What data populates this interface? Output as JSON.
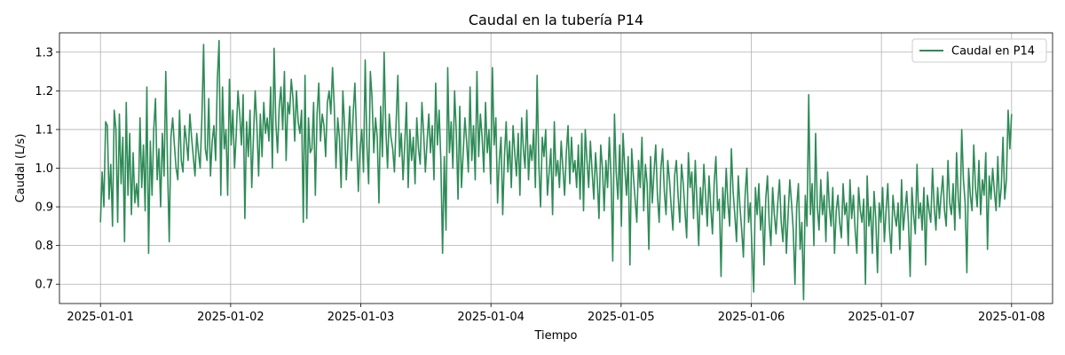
{
  "chart_data": {
    "type": "line",
    "title": "Caudal en la tubería P14",
    "xlabel": "Tiempo",
    "ylabel": "Caudal (L/s)",
    "x_start": "2025-01-01",
    "x_end": "2025-01-08",
    "x_step": "hourly",
    "xlim": [
      "2025-01-01",
      "2025-01-08"
    ],
    "ylim": [
      0.65,
      1.35
    ],
    "x_ticks": [
      "2025-01-01",
      "2025-01-02",
      "2025-01-03",
      "2025-01-04",
      "2025-01-05",
      "2025-01-06",
      "2025-01-07",
      "2025-01-08"
    ],
    "y_ticks": [
      0.7,
      0.8,
      0.9,
      1.0,
      1.1,
      1.2,
      1.3
    ],
    "y_tick_labels": [
      "0.7",
      "0.8",
      "0.9",
      "1.0",
      "1.1",
      "1.2",
      "1.3"
    ],
    "grid": true,
    "legend_position": "top-right",
    "series": [
      {
        "name": "Caudal en P14",
        "color": "#2e8b57",
        "values": [
          0.86,
          0.99,
          0.9,
          1.12,
          1.11,
          0.92,
          1.01,
          0.85,
          1.15,
          1.1,
          0.86,
          1.14,
          0.96,
          1.08,
          0.81,
          1.17,
          0.93,
          1.09,
          0.88,
          1.04,
          0.91,
          0.96,
          0.9,
          1.13,
          0.95,
          1.06,
          0.89,
          1.21,
          0.78,
          1.07,
          0.93,
          1.1,
          1.18,
          0.97,
          1.05,
          0.9,
          1.09,
          0.98,
          1.25,
          1.01,
          0.81,
          1.08,
          1.13,
          1.06,
          1.0,
          0.97,
          1.15,
          1.02,
          0.99,
          1.11,
          1.07,
          1.02,
          1.14,
          1.08,
          1.03,
          0.98,
          1.09,
          1.04,
          1.0,
          1.13,
          1.32,
          1.05,
          1.02,
          1.18,
          0.98,
          1.07,
          1.11,
          1.02,
          1.23,
          1.33,
          0.93,
          1.21,
          1.05,
          1.1,
          0.93,
          1.23,
          1.06,
          1.15,
          1.0,
          1.09,
          1.2,
          1.14,
          1.06,
          1.19,
          0.87,
          1.12,
          1.03,
          1.15,
          0.95,
          1.08,
          1.2,
          1.11,
          0.98,
          1.14,
          1.03,
          1.17,
          1.09,
          1.13,
          1.07,
          1.21,
          1.0,
          1.31,
          1.12,
          1.04,
          1.16,
          1.21,
          1.1,
          1.25,
          1.02,
          1.17,
          1.14,
          1.23,
          1.18,
          1.07,
          1.2,
          1.12,
          1.09,
          1.15,
          0.86,
          1.24,
          0.87,
          1.13,
          1.04,
          1.05,
          1.17,
          0.93,
          1.14,
          1.22,
          1.07,
          1.14,
          1.11,
          1.03,
          1.17,
          1.2,
          1.14,
          1.26,
          1.16,
          1.0,
          1.13,
          1.08,
          0.95,
          1.2,
          1.11,
          0.97,
          1.07,
          1.16,
          1.02,
          1.14,
          1.22,
          1.08,
          0.94,
          1.05,
          1.1,
          0.99,
          1.28,
          1.06,
          0.96,
          1.25,
          1.18,
          1.04,
          1.13,
          1.08,
          0.91,
          1.16,
          1.03,
          1.3,
          1.1,
          1.0,
          1.14,
          1.08,
          1.05,
          0.99,
          1.12,
          1.24,
          1.03,
          1.09,
          0.97,
          1.06,
          1.17,
          0.95,
          1.1,
          1.02,
          1.08,
          0.96,
          1.13,
          1.05,
          1.01,
          1.17,
          1.09,
          0.99,
          1.07,
          1.14,
          1.04,
          1.11,
          0.97,
          1.22,
          1.06,
          1.15,
          1.02,
          0.78,
          1.03,
          0.84,
          1.26,
          1.04,
          1.12,
          1.0,
          1.2,
          1.09,
          0.92,
          1.16,
          0.95,
          1.04,
          1.13,
          1.07,
          0.99,
          1.21,
          1.02,
          1.11,
          0.97,
          1.25,
          1.03,
          1.14,
          1.08,
          0.99,
          1.17,
          1.04,
          1.1,
          0.96,
          1.26,
          1.06,
          1.13,
          0.91,
          1.02,
          1.08,
          0.88,
          1.03,
          1.12,
          0.99,
          1.07,
          0.95,
          1.11,
          1.04,
          0.98,
          1.09,
          0.93,
          1.13,
          1.05,
          1.0,
          1.15,
          0.97,
          1.06,
          1.02,
          1.1,
          0.95,
          1.24,
          1.01,
          0.9,
          1.08,
          1.03,
          1.1,
          0.93,
          0.99,
          1.05,
          0.88,
          1.12,
          0.98,
          1.02,
          0.95,
          1.07,
          1.0,
          0.93,
          1.04,
          1.11,
          0.96,
          1.08,
          0.99,
          1.02,
          0.95,
          1.06,
          0.92,
          1.09,
          0.89,
          1.1,
          1.02,
          0.95,
          1.07,
          0.99,
          0.92,
          1.04,
          0.97,
          0.87,
          1.06,
          1.0,
          0.89,
          1.02,
          0.95,
          1.08,
          0.98,
          0.76,
          1.14,
          0.99,
          0.92,
          1.06,
          0.85,
          1.09,
          1.0,
          0.93,
          1.03,
          0.75,
          1.05,
          0.98,
          0.92,
          0.86,
          1.02,
          0.95,
          1.08,
          0.89,
          1.01,
          0.96,
          0.79,
          1.03,
          0.91,
          0.99,
          1.06,
          0.93,
          0.86,
          1.0,
          1.05,
          0.94,
          0.88,
          1.02,
          0.97,
          0.9,
          0.84,
          0.98,
          1.02,
          0.93,
          0.86,
          1.01,
          0.96,
          0.89,
          0.82,
          1.04,
          0.95,
          0.99,
          0.87,
          1.02,
          0.91,
          0.8,
          0.95,
          0.88,
          1.01,
          0.93,
          0.85,
          0.98,
          0.9,
          0.83,
          0.96,
          1.03,
          0.89,
          0.92,
          0.72,
          0.95,
          0.87,
          1.0,
          0.91,
          0.85,
          1.05,
          0.94,
          0.88,
          0.81,
          0.98,
          0.9,
          0.84,
          0.77,
          0.93,
          1.0,
          0.86,
          0.91,
          0.79,
          0.68,
          0.95,
          0.88,
          0.96,
          0.84,
          0.9,
          0.75,
          0.92,
          0.98,
          0.86,
          0.8,
          0.95,
          0.88,
          0.83,
          0.91,
          0.97,
          0.86,
          0.81,
          0.93,
          0.78,
          0.88,
          0.97,
          0.91,
          0.84,
          0.7,
          0.9,
          0.96,
          0.79,
          0.86,
          0.66,
          0.93,
          0.85,
          1.19,
          0.88,
          0.96,
          0.8,
          1.09,
          0.9,
          0.84,
          0.97,
          0.88,
          0.93,
          0.81,
          0.99,
          0.9,
          0.85,
          0.95,
          0.78,
          0.89,
          0.93,
          0.86,
          0.82,
          0.96,
          0.88,
          0.91,
          0.8,
          0.97,
          0.87,
          0.93,
          0.84,
          0.78,
          0.95,
          0.89,
          0.86,
          0.92,
          0.7,
          0.98,
          0.85,
          0.9,
          0.78,
          0.94,
          0.87,
          0.73,
          0.91,
          0.86,
          0.95,
          0.81,
          0.89,
          0.96,
          0.84,
          0.78,
          0.93,
          0.88,
          0.85,
          0.91,
          0.79,
          0.97,
          0.84,
          0.89,
          0.94,
          0.86,
          0.72,
          0.95,
          0.88,
          0.83,
          1.01,
          0.87,
          0.91,
          0.84,
          0.95,
          0.75,
          0.93,
          0.89,
          0.86,
          1.0,
          0.9,
          0.84,
          0.95,
          0.87,
          0.93,
          0.98,
          0.89,
          0.85,
          1.02,
          0.91,
          0.88,
          0.96,
          0.84,
          1.04,
          0.92,
          0.87,
          1.1,
          0.97,
          0.91,
          0.73,
          1.0,
          0.93,
          0.89,
          1.06,
          0.95,
          0.9,
          1.02,
          0.88,
          0.97,
          0.93,
          1.04,
          0.79,
          0.98,
          0.92,
          1.0,
          0.94,
          0.89,
          1.03,
          0.9,
          0.95,
          1.08,
          0.92,
          0.97,
          1.15,
          1.05,
          1.14
        ]
      }
    ]
  }
}
